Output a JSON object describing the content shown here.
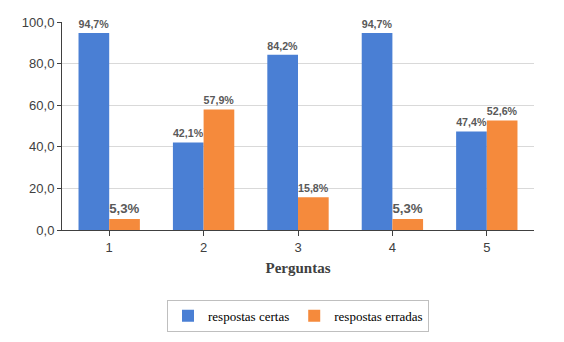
{
  "chart_data": {
    "type": "bar",
    "x_label": "Perguntas",
    "categories": [
      "1",
      "2",
      "3",
      "4",
      "5"
    ],
    "series": [
      {
        "name": "respostas certas",
        "color": "#4a7fd4",
        "values": [
          94.7,
          42.1,
          84.2,
          94.7,
          47.4
        ],
        "value_labels": [
          "94,7%",
          "42,1%",
          "84,2%",
          "94,7%",
          "47,4%"
        ]
      },
      {
        "name": "respostas erradas",
        "color": "#f58a3c",
        "values": [
          5.3,
          57.9,
          15.8,
          5.3,
          52.6
        ],
        "value_labels": [
          "5,3%",
          "57,9%",
          "15,8%",
          "5,3%",
          "52,6%"
        ]
      }
    ],
    "ylim": [
      0,
      100
    ],
    "yticks": [
      {
        "value": 0,
        "label": "0,0"
      },
      {
        "value": 20,
        "label": "20,0"
      },
      {
        "value": 40,
        "label": "40,0"
      },
      {
        "value": 60,
        "label": "60,0"
      },
      {
        "value": 80,
        "label": "80,0"
      },
      {
        "value": 100,
        "label": "100,0"
      }
    ],
    "grid": true,
    "legend": "bottom",
    "data_labels": true
  }
}
